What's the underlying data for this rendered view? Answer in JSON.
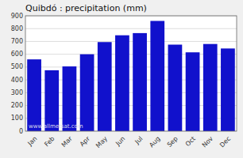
{
  "chart_data": {
    "type": "bar",
    "title": "Quibdó : precipitation (mm)",
    "categories": [
      "Jan",
      "Feb",
      "Mar",
      "Apr",
      "May",
      "Jun",
      "Jul",
      "Aug",
      "Sep",
      "Oct",
      "Nov",
      "Dec"
    ],
    "values": [
      560,
      475,
      505,
      600,
      695,
      748,
      765,
      860,
      675,
      615,
      680,
      645
    ],
    "color": "#1111cc",
    "ylim": [
      0,
      900
    ],
    "yticks": [
      0,
      100,
      200,
      300,
      400,
      500,
      600,
      700,
      800,
      900
    ],
    "grid": true,
    "annotations": [
      "www.allmetsat.com"
    ]
  }
}
